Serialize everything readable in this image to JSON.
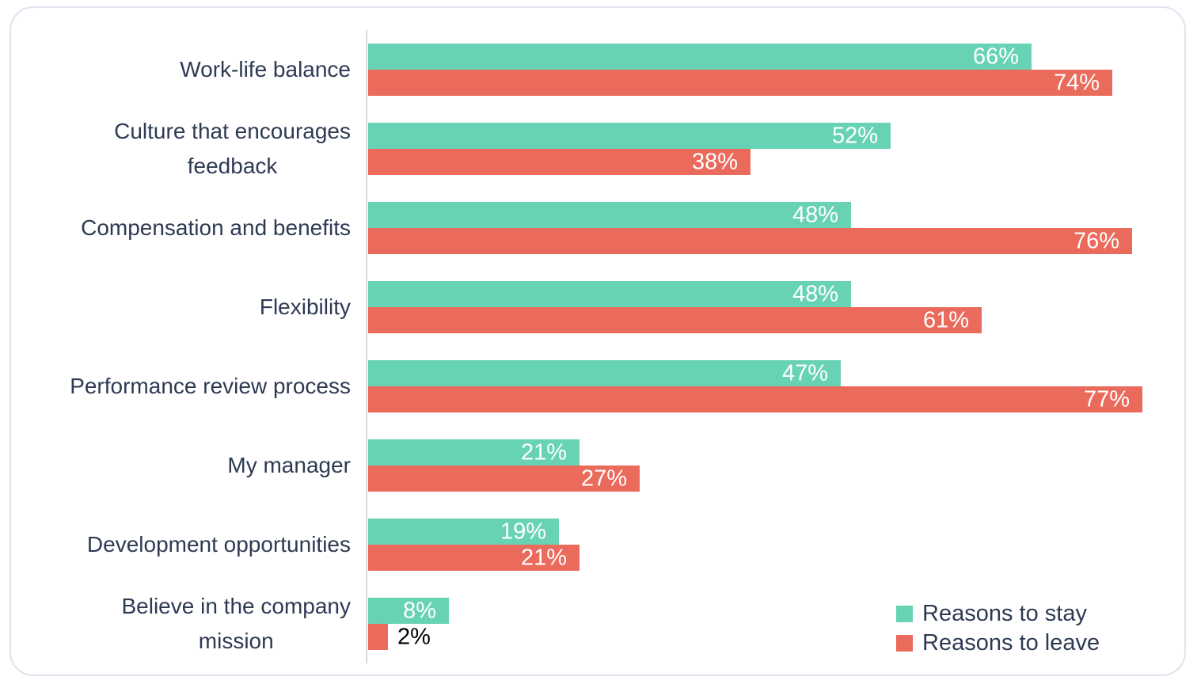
{
  "chart_data": {
    "type": "bar",
    "orientation": "horizontal",
    "title": "",
    "xlabel": "",
    "ylabel": "",
    "xlim": [
      0,
      80
    ],
    "grid": false,
    "legend_position": "bottom-right",
    "value_format": "percent",
    "categories": [
      "Work-life balance",
      "Culture that encourages\nfeedback",
      "Compensation and benefits",
      "Flexibility",
      "Performance review process",
      "My manager",
      "Development opportunities",
      "Believe in the company\nmission"
    ],
    "series": [
      {
        "name": "Reasons to stay",
        "color": "#68d3b4",
        "values": [
          66,
          52,
          48,
          48,
          47,
          21,
          19,
          8
        ]
      },
      {
        "name": "Reasons to leave",
        "color": "#ea6a5b",
        "values": [
          74,
          38,
          76,
          61,
          77,
          27,
          21,
          2
        ]
      }
    ]
  },
  "colors": {
    "label_text": "#2e3a54",
    "value_text_inside": "#ffffff",
    "value_text_outside": "#000000",
    "axis_line": "#d9d9d9",
    "card_border": "#e3e0f0",
    "background": "#ffffff"
  }
}
